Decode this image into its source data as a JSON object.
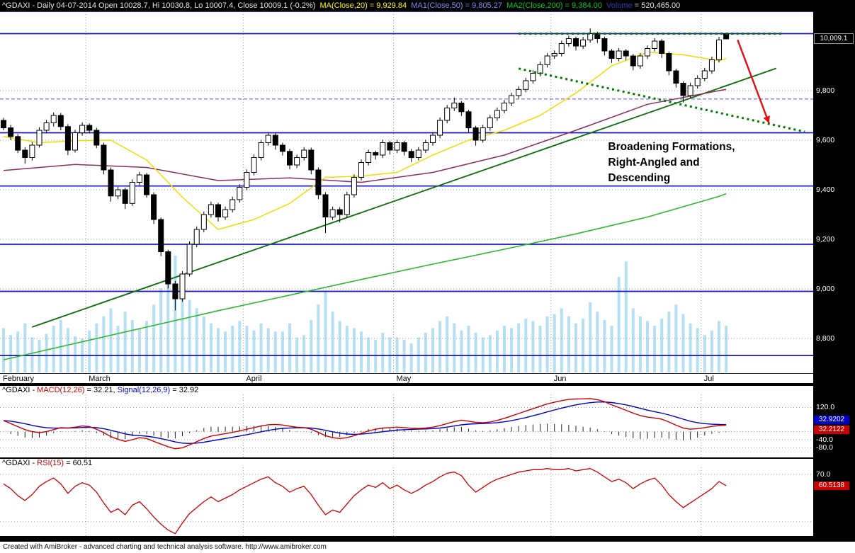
{
  "title_bar": {
    "symbol_text": "^GDAXI - Daily 04-07-2014 Open 10028.7, Hi 10030.8, Lo 10007.4, Close 10009.1 (-0.2%)  ",
    "ma20_text": "MA(Close,20) = 9,929.84  ",
    "ma50_text": "MA1(Close,50) = 9,805.27  ",
    "ma200_text": "MA2(Close,200) = 9,384.00  ",
    "volume_label": "Volume",
    "volume_value": " = 520,465.00"
  },
  "macd_panel": {
    "prefix": "^GDAXI - ",
    "macd_label": "MACD(12,26)",
    "macd_value": " = 32.21, ",
    "signal_label": "Signal(12,26,9)",
    "signal_value": " = 32.92"
  },
  "rsi_panel": {
    "prefix": "^GDAXI - ",
    "rsi_label": "RSI(15)",
    "rsi_value": " = 60.51"
  },
  "status_bar": "Created with AmiBroker - advanced charting and technical analysis software. http://www.amibroker.com",
  "axis": {
    "price_labels": [
      {
        "text": "9,800",
        "value": 9800
      },
      {
        "text": "9,600",
        "value": 9600
      },
      {
        "text": "9,400",
        "value": 9400
      },
      {
        "text": "9,200",
        "value": 9200
      },
      {
        "text": "9,000",
        "value": 9000
      },
      {
        "text": "8,800",
        "value": 8800
      }
    ],
    "last_price": "10,009.1",
    "macd_labels": [
      {
        "text": "120.0",
        "value": 120
      },
      {
        "text": "-40.0",
        "value": -40
      },
      {
        "text": "-80.0",
        "value": -80
      }
    ],
    "signal_box": "32.9202",
    "macd_box": "32.2122",
    "rsi_label": {
      "text": "70.0",
      "value": 70
    },
    "rsi_box": "60.5138"
  },
  "colors": {
    "up": "#ffffff",
    "down": "#000000",
    "volume": "#b5e0f3",
    "ma20": "#f0dc00",
    "ma50": "#8b2e5e",
    "ma200": "#2eb82e",
    "trendline": "#0a6e0a",
    "sr_line": "#1414c8",
    "dashed_line": "#5050ff",
    "formation": "#007a00",
    "arrow": "#dd1111",
    "macd_line": "#cc0000",
    "signal_line": "#0000cc",
    "rsi_line": "#cc0000",
    "grid": "#9a9a9a",
    "hist": "#222222"
  },
  "chart_data": {
    "type": "candlestick",
    "symbol": "^GDAXI",
    "interval": "Daily",
    "last_date": "04-07-2014",
    "last_ohlc": {
      "open": 10028.7,
      "high": 10030.8,
      "low": 10007.4,
      "close": 10009.1,
      "change_pct": -0.2
    },
    "last_volume": 520465,
    "months": [
      {
        "label": "February",
        "days": 12
      },
      {
        "label": "March",
        "days": 22
      },
      {
        "label": "April",
        "days": 21
      },
      {
        "label": "May",
        "days": 22
      },
      {
        "label": "Jun",
        "days": 21
      },
      {
        "label": "Jul",
        "days": 4
      }
    ],
    "candles": [
      [
        9680,
        9690,
        9640,
        9650
      ],
      [
        9650,
        9662,
        9600,
        9615
      ],
      [
        9615,
        9625,
        9548,
        9560
      ],
      [
        9560,
        9572,
        9505,
        9530
      ],
      [
        9530,
        9592,
        9518,
        9580
      ],
      [
        9580,
        9652,
        9570,
        9640
      ],
      [
        9640,
        9682,
        9628,
        9670
      ],
      [
        9670,
        9712,
        9655,
        9700
      ],
      [
        9700,
        9710,
        9640,
        9655
      ],
      [
        9655,
        9665,
        9540,
        9560
      ],
      [
        9560,
        9642,
        9550,
        9630
      ],
      [
        9630,
        9672,
        9618,
        9660
      ],
      [
        9660,
        9668,
        9628,
        9640
      ],
      [
        9640,
        9650,
        9568,
        9580
      ],
      [
        9580,
        9590,
        9462,
        9480
      ],
      [
        9480,
        9490,
        9352,
        9375
      ],
      [
        9375,
        9412,
        9362,
        9400
      ],
      [
        9400,
        9408,
        9322,
        9345
      ],
      [
        9345,
        9442,
        9335,
        9430
      ],
      [
        9430,
        9472,
        9418,
        9460
      ],
      [
        9460,
        9468,
        9368,
        9380
      ],
      [
        9380,
        9390,
        9262,
        9280
      ],
      [
        9280,
        9288,
        9132,
        9150
      ],
      [
        9150,
        9158,
        9002,
        9020
      ],
      [
        9020,
        9032,
        8913,
        8960
      ],
      [
        8960,
        9072,
        8948,
        9060
      ],
      [
        9060,
        9192,
        9050,
        9180
      ],
      [
        9180,
        9252,
        9168,
        9240
      ],
      [
        9240,
        9312,
        9228,
        9300
      ],
      [
        9300,
        9352,
        9288,
        9340
      ],
      [
        9340,
        9348,
        9272,
        9290
      ],
      [
        9290,
        9332,
        9278,
        9320
      ],
      [
        9320,
        9372,
        9308,
        9360
      ],
      [
        9360,
        9422,
        9348,
        9410
      ],
      [
        9410,
        9482,
        9398,
        9470
      ],
      [
        9470,
        9542,
        9458,
        9530
      ],
      [
        9530,
        9602,
        9518,
        9590
      ],
      [
        9590,
        9632,
        9578,
        9620
      ],
      [
        9620,
        9628,
        9562,
        9580
      ],
      [
        9580,
        9590,
        9538,
        9555
      ],
      [
        9555,
        9565,
        9482,
        9500
      ],
      [
        9500,
        9542,
        9488,
        9530
      ],
      [
        9530,
        9572,
        9518,
        9560
      ],
      [
        9560,
        9570,
        9462,
        9480
      ],
      [
        9480,
        9490,
        9362,
        9380
      ],
      [
        9380,
        9390,
        9225,
        9290
      ],
      [
        9290,
        9332,
        9278,
        9320
      ],
      [
        9320,
        9330,
        9268,
        9300
      ],
      [
        9300,
        9392,
        9288,
        9380
      ],
      [
        9380,
        9462,
        9368,
        9450
      ],
      [
        9450,
        9522,
        9438,
        9510
      ],
      [
        9510,
        9562,
        9498,
        9550
      ],
      [
        9550,
        9558,
        9522,
        9540
      ],
      [
        9540,
        9602,
        9528,
        9590
      ],
      [
        9590,
        9598,
        9542,
        9560
      ],
      [
        9560,
        9602,
        9548,
        9590
      ],
      [
        9590,
        9598,
        9538,
        9555
      ],
      [
        9555,
        9565,
        9512,
        9530
      ],
      [
        9530,
        9572,
        9518,
        9560
      ],
      [
        9560,
        9602,
        9548,
        9590
      ],
      [
        9590,
        9632,
        9578,
        9620
      ],
      [
        9620,
        9692,
        9608,
        9680
      ],
      [
        9680,
        9742,
        9668,
        9730
      ],
      [
        9730,
        9772,
        9718,
        9750
      ],
      [
        9750,
        9758,
        9698,
        9715
      ],
      [
        9715,
        9722,
        9632,
        9650
      ],
      [
        9650,
        9658,
        9578,
        9600
      ],
      [
        9600,
        9662,
        9590,
        9650
      ],
      [
        9650,
        9702,
        9638,
        9690
      ],
      [
        9690,
        9732,
        9678,
        9720
      ],
      [
        9720,
        9762,
        9708,
        9750
      ],
      [
        9750,
        9792,
        9738,
        9780
      ],
      [
        9780,
        9817,
        9768,
        9805
      ],
      [
        9805,
        9852,
        9793,
        9840
      ],
      [
        9840,
        9882,
        9828,
        9870
      ],
      [
        9870,
        9917,
        9858,
        9905
      ],
      [
        9905,
        9952,
        9893,
        9940
      ],
      [
        9940,
        9962,
        9928,
        9950
      ],
      [
        9950,
        10002,
        9938,
        9990
      ],
      [
        9990,
        10022,
        9978,
        10010
      ],
      [
        10010,
        10018,
        9962,
        9980
      ],
      [
        9980,
        10017,
        9968,
        10005
      ],
      [
        10005,
        10051,
        9993,
        10030
      ],
      [
        10030,
        10038,
        9992,
        10010
      ],
      [
        10010,
        10018,
        9942,
        9960
      ],
      [
        9960,
        9968,
        9912,
        9930
      ],
      [
        9930,
        9972,
        9918,
        9960
      ],
      [
        9960,
        9968,
        9922,
        9940
      ],
      [
        9940,
        9948,
        9882,
        9900
      ],
      [
        9900,
        9952,
        9888,
        9940
      ],
      [
        9940,
        9982,
        9928,
        9970
      ],
      [
        9970,
        10012,
        9958,
        10000
      ],
      [
        10000,
        10008,
        9932,
        9950
      ],
      [
        9950,
        9958,
        9862,
        9880
      ],
      [
        9880,
        9888,
        9812,
        9830
      ],
      [
        9830,
        9838,
        9752,
        9780
      ],
      [
        9780,
        9832,
        9768,
        9820
      ],
      [
        9820,
        9862,
        9808,
        9850
      ],
      [
        9850,
        9892,
        9838,
        9880
      ],
      [
        9880,
        9937,
        9868,
        9925
      ],
      [
        9925,
        10017,
        9913,
        10005
      ],
      [
        10028.7,
        10030.8,
        10007.4,
        10009.1
      ]
    ],
    "volume_rel": [
      0.38,
      0.32,
      0.35,
      0.42,
      0.3,
      0.28,
      0.33,
      0.4,
      0.45,
      0.38,
      0.31,
      0.29,
      0.36,
      0.42,
      0.48,
      0.55,
      0.4,
      0.52,
      0.45,
      0.38,
      0.44,
      0.58,
      0.72,
      0.85,
      1.0,
      0.78,
      0.62,
      0.55,
      0.48,
      0.42,
      0.38,
      0.35,
      0.4,
      0.44,
      0.4,
      0.36,
      0.42,
      0.38,
      0.35,
      0.35,
      0.42,
      0.3,
      0.32,
      0.45,
      0.58,
      0.7,
      0.52,
      0.44,
      0.4,
      0.38,
      0.35,
      0.3,
      0.28,
      0.34,
      0.3,
      0.3,
      0.28,
      0.25,
      0.3,
      0.34,
      0.38,
      0.44,
      0.48,
      0.42,
      0.36,
      0.4,
      0.34,
      0.3,
      0.32,
      0.36,
      0.4,
      0.38,
      0.42,
      0.46,
      0.44,
      0.4,
      0.48,
      0.5,
      0.55,
      0.48,
      0.42,
      0.46,
      0.6,
      0.52,
      0.45,
      0.4,
      0.82,
      0.95,
      0.55,
      0.48,
      0.44,
      0.4,
      0.46,
      0.52,
      0.58,
      0.5,
      0.42,
      0.38,
      0.32,
      0.36,
      0.44,
      0.4
    ],
    "overlays": {
      "grid_levels": [
        9800,
        9600,
        9400,
        9200,
        9000,
        8800
      ],
      "support_resistance": [
        10030,
        9630,
        9415,
        9180,
        8990,
        8731
      ],
      "dashed_level": 9766,
      "ma20": {
        "label": "MA(Close,20)",
        "last": 9929.84,
        "step": 5,
        "samples": [
          9615,
          9590,
          9598,
          9600,
          9520,
          9370,
          9240,
          9280,
          9345,
          9450,
          9455,
          9470,
          9540,
          9600,
          9640,
          9700,
          9790,
          9900,
          9955,
          9945,
          9920,
          9929.84
        ]
      },
      "ma50": {
        "label": "MA1(Close,50)",
        "last": 9805.27,
        "step": 10,
        "samples": [
          9478,
          9502,
          9490,
          9437,
          9448,
          9430,
          9470,
          9540,
          9640,
          9745,
          9800,
          9805.27
        ]
      },
      "ma200": {
        "label": "MA2(Close,200)",
        "last": 9384.0,
        "step": 10,
        "samples": [
          8714,
          8780,
          8846,
          8912,
          8975,
          9038,
          9100,
          9160,
          9222,
          9290,
          9373,
          9384
        ]
      },
      "trendline": {
        "i1": 4,
        "p1": 8846,
        "i2": 108,
        "p2": 9890
      },
      "formation": {
        "top_price": 10030,
        "top_i1": 72,
        "top_i2": 109,
        "desc_i1": 72,
        "desc_p1": 9889,
        "desc_i2": 112,
        "desc_p2": 9634
      },
      "arrow": {
        "i1": 102.6,
        "p1": 10005,
        "i2": 107,
        "p2": 9668
      },
      "annotation": {
        "i": 84.5,
        "price": 9560,
        "lines": [
          "Broadening Formations,",
          "Right-Angled and",
          "Descending"
        ]
      }
    },
    "macd": {
      "label": "MACD(12,26)",
      "last": 32.21,
      "signal_last": 32.92,
      "axis_range": [
        185,
        -128
      ],
      "values": [
        55,
        40,
        25,
        10,
        0,
        -5,
        0,
        10,
        20,
        18,
        22,
        28,
        25,
        12,
        -5,
        -25,
        -38,
        -48,
        -40,
        -30,
        -34,
        -48,
        -62,
        -75,
        -85,
        -80,
        -66,
        -50,
        -34,
        -22,
        -16,
        -10,
        -4,
        4,
        12,
        20,
        28,
        34,
        36,
        33,
        27,
        22,
        20,
        12,
        -4,
        -20,
        -30,
        -34,
        -30,
        -20,
        -8,
        4,
        12,
        18,
        20,
        22,
        20,
        17,
        16,
        18,
        22,
        30,
        40,
        50,
        57,
        52,
        46,
        44,
        48,
        56,
        66,
        78,
        90,
        102,
        114,
        126,
        138,
        146,
        154,
        160,
        162,
        163,
        164,
        159,
        149,
        133,
        120,
        106,
        92,
        80,
        72,
        68,
        62,
        48,
        32,
        18,
        12,
        15,
        20,
        26,
        30,
        32.21
      ]
    },
    "rsi": {
      "label": "RSI(15)",
      "last": 60.51,
      "axis_range": [
        76,
        18
      ],
      "grid": [
        70,
        30
      ],
      "values": [
        62,
        58,
        52,
        48,
        53,
        60,
        64,
        67,
        62,
        54,
        60,
        63,
        61,
        55,
        46,
        38,
        41,
        36,
        44,
        47,
        41,
        34,
        28,
        23,
        20,
        29,
        37,
        42,
        47,
        51,
        47,
        50,
        53,
        57,
        60,
        63,
        66,
        68,
        63,
        60,
        55,
        58,
        60,
        53,
        44,
        36,
        40,
        38,
        45,
        52,
        57,
        61,
        59,
        63,
        58,
        61,
        57,
        54,
        57,
        61,
        64,
        68,
        71,
        72,
        69,
        61,
        55,
        59,
        63,
        66,
        68,
        70,
        72,
        73,
        74,
        74,
        75,
        74,
        74,
        75,
        73,
        74,
        75,
        72,
        68,
        64,
        66,
        63,
        58,
        62,
        65,
        67,
        61,
        53,
        47,
        42,
        46,
        50,
        54,
        58,
        64,
        60.51
      ]
    }
  }
}
